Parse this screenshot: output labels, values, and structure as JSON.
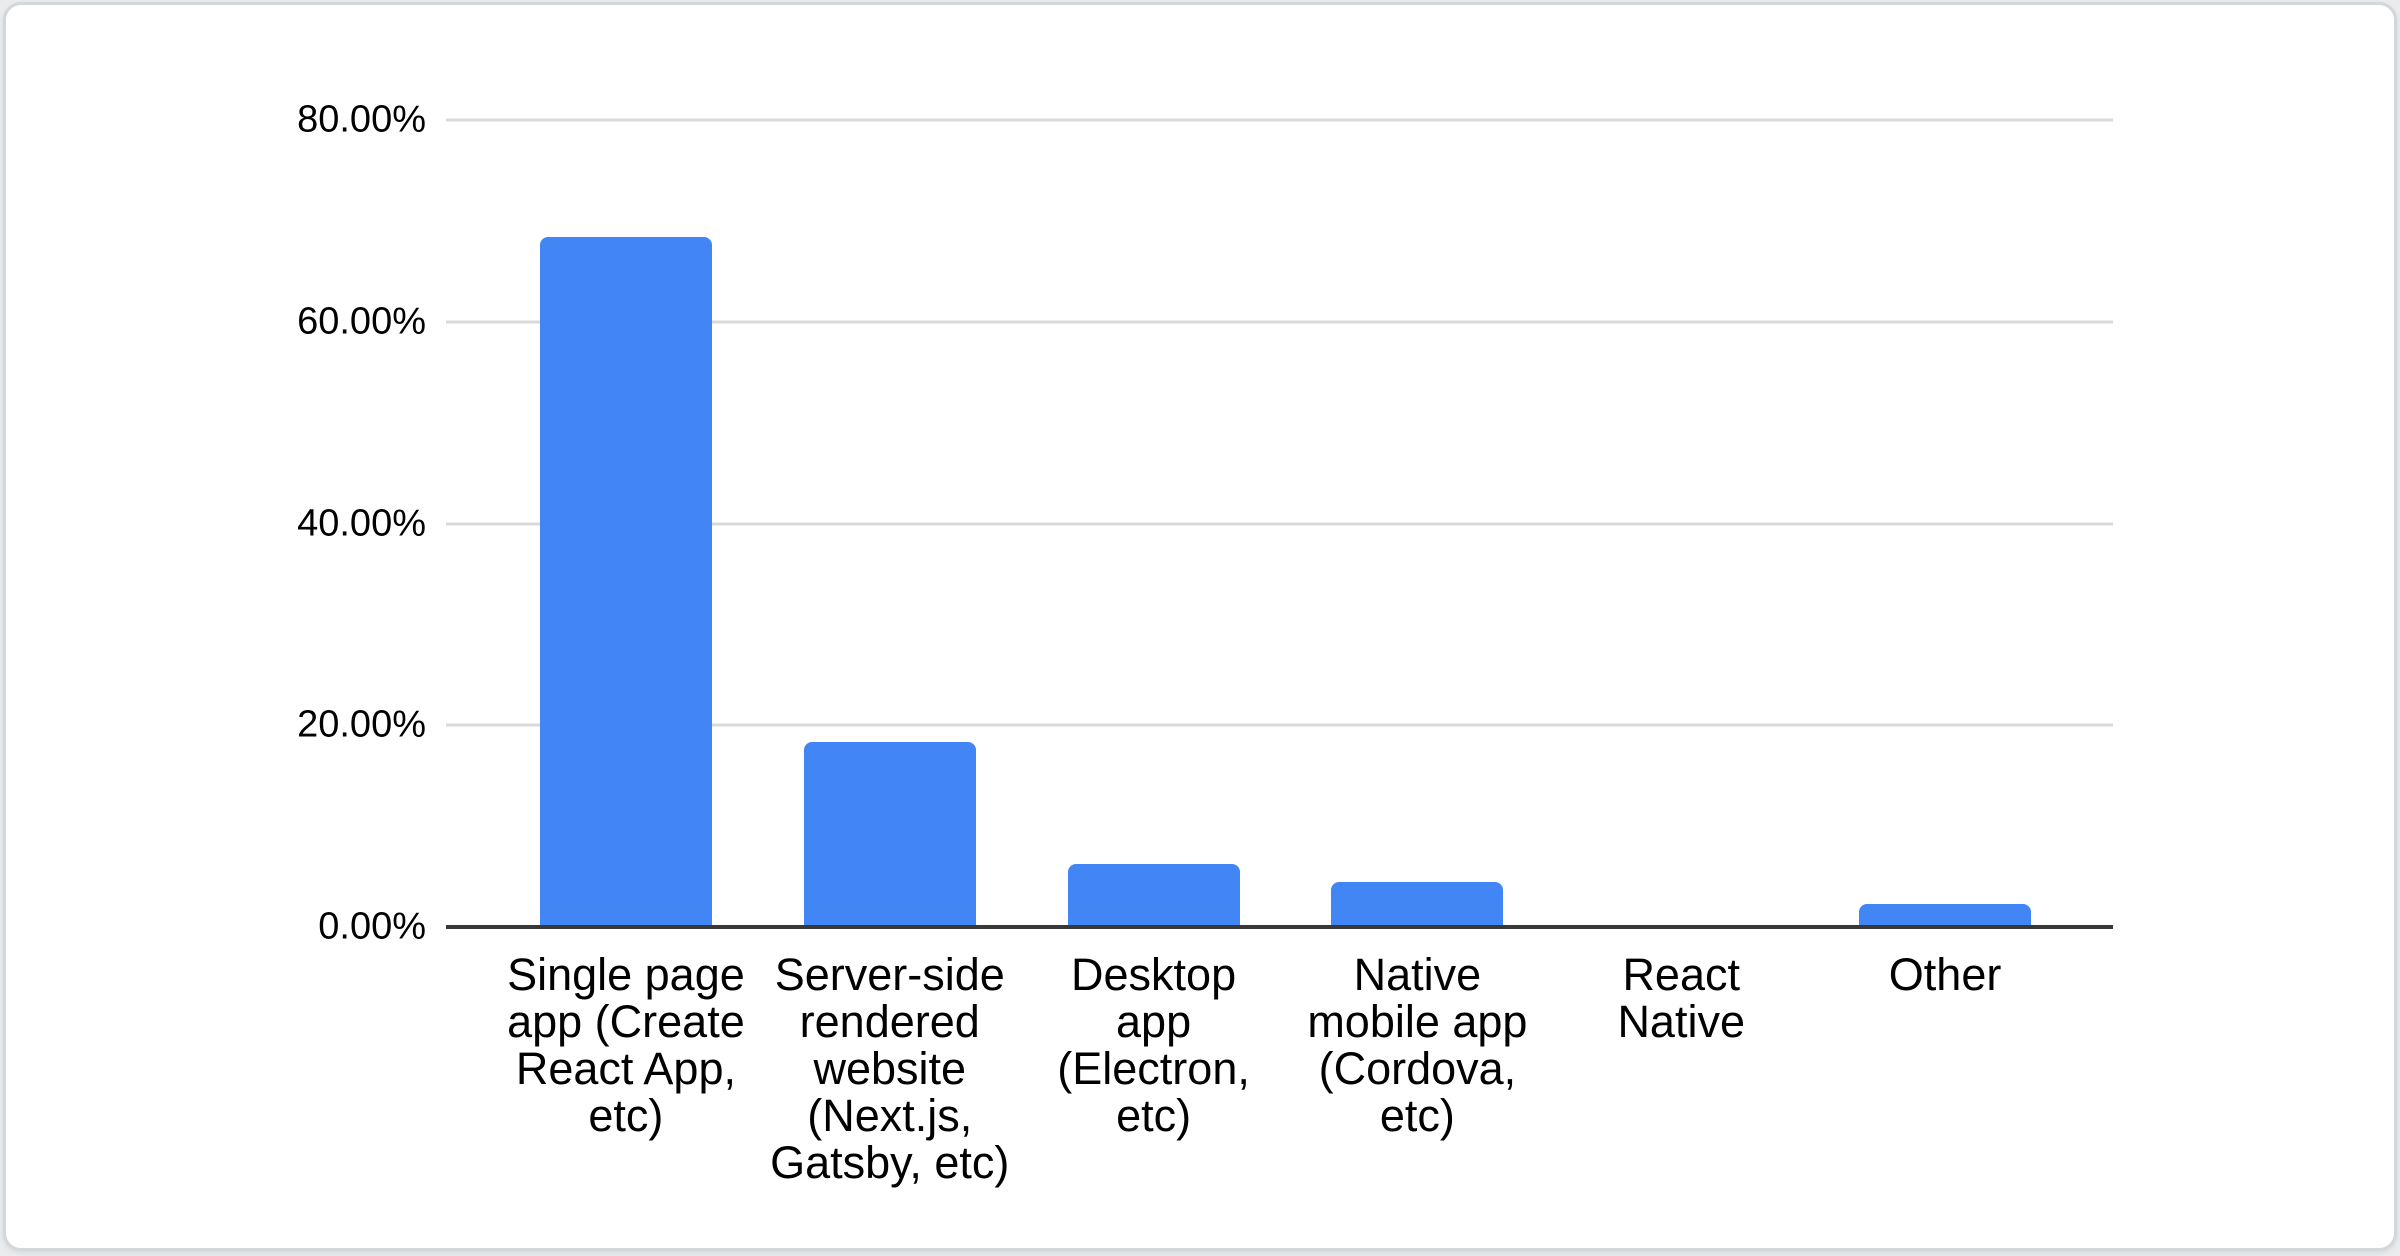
{
  "page": {
    "background_color": "#e9ebed"
  },
  "card": {
    "background_color": "#ffffff",
    "border_color": "#d3d7da"
  },
  "chart_data": {
    "type": "bar",
    "title": "",
    "xlabel": "",
    "ylabel": "",
    "categories": [
      "Single page app (Create React App, etc)",
      "Server-side rendered website (Next.js, Gatsby, etc)",
      "Desktop app (Electron, etc)",
      "Native mobile app (Cordova, etc)",
      "React Native",
      "Other"
    ],
    "category_label_lines": [
      [
        "Single page",
        "app (Create",
        "React App,",
        "etc)"
      ],
      [
        "Server-side",
        "rendered",
        "website",
        "(Next.js,",
        "Gatsby, etc)"
      ],
      [
        "Desktop",
        "app",
        "(Electron,",
        "etc)"
      ],
      [
        "Native",
        "mobile app",
        "(Cordova,",
        "etc)"
      ],
      [
        "React",
        "Native"
      ],
      [
        "Other"
      ]
    ],
    "values": [
      68.4,
      18.3,
      6.2,
      4.5,
      0,
      2.3
    ],
    "value_unit": "%",
    "ytick_labels": [
      "80.00%",
      "60.00%",
      "40.00%",
      "20.00%",
      "0.00%"
    ],
    "ytick_values": [
      80,
      60,
      40,
      20,
      0
    ],
    "ylim": [
      0,
      80
    ],
    "grid": true,
    "legend_position": "none",
    "bar_color": "#4285F4",
    "gridline_color": "#d9d9d9",
    "axis_line_color": "#383838",
    "label_color": "#000000"
  }
}
